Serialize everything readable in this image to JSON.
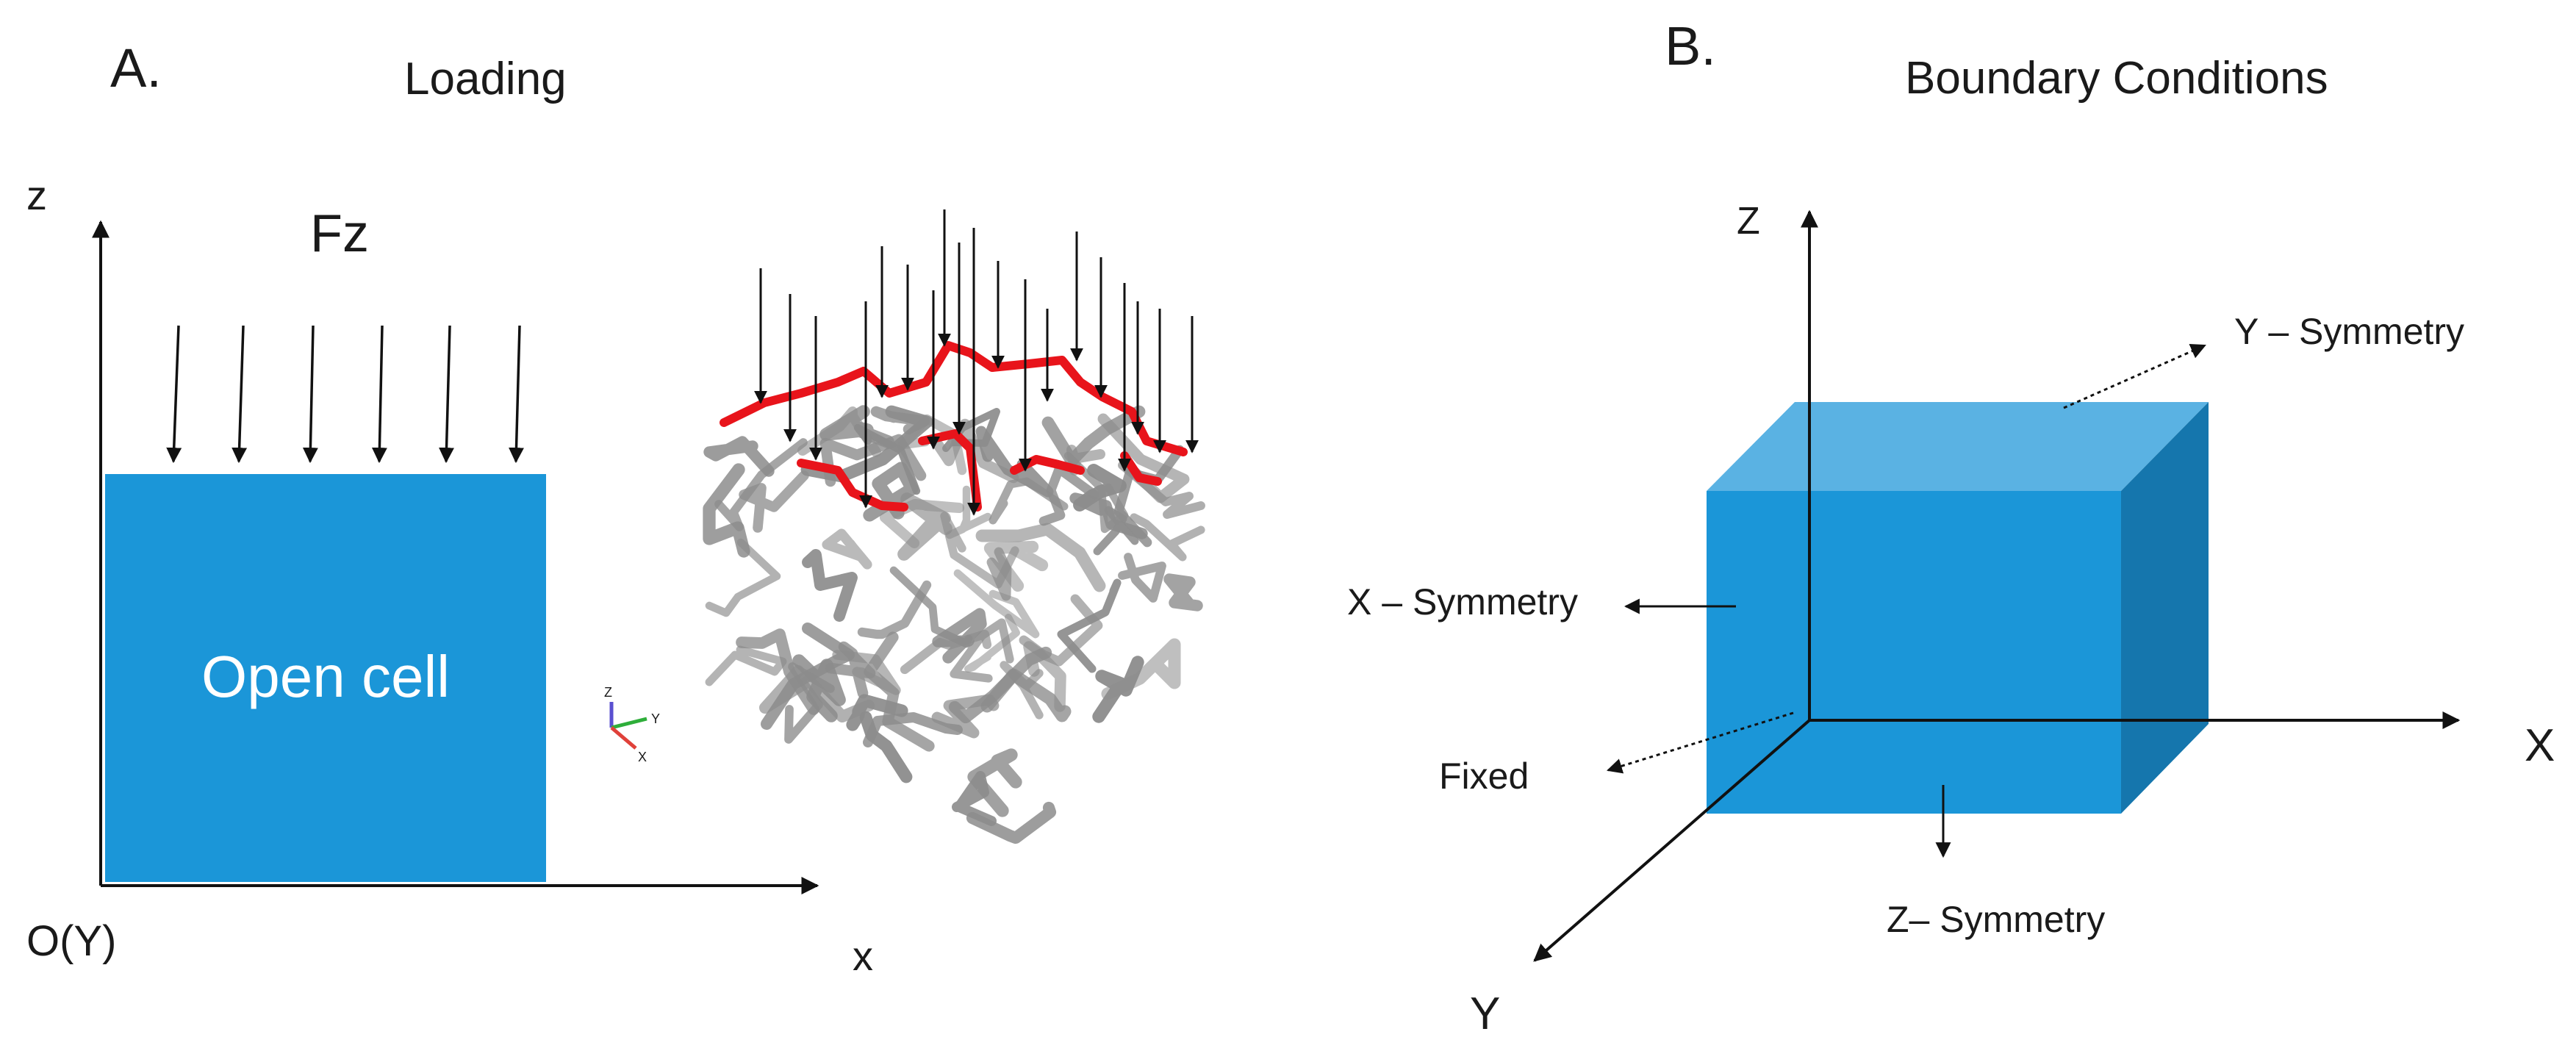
{
  "panel_a": {
    "letter": "A.",
    "title": "Loading",
    "axis_z": "z",
    "axis_x": "x",
    "origin": "O(Y)",
    "force": "Fz",
    "box_label": "Open cell",
    "mini_triad": {
      "z": "Z",
      "y": "Y",
      "x": "X"
    }
  },
  "panel_b": {
    "letter": "B.",
    "title": "Boundary Conditions",
    "axis_z": "Z",
    "axis_x": "X",
    "axis_y": "Y",
    "y_symmetry": "Y – Symmetry",
    "x_symmetry": "X – Symmetry",
    "fixed": "Fixed",
    "z_symmetry": "Z– Symmetry"
  },
  "colors": {
    "box_blue": "#1b96d8",
    "box_top": "#5ab2e3",
    "box_side": "#1576ad",
    "strut_gray": "#8c8c8c",
    "loaded_red": "#e8141b",
    "arrow": "#111111"
  }
}
